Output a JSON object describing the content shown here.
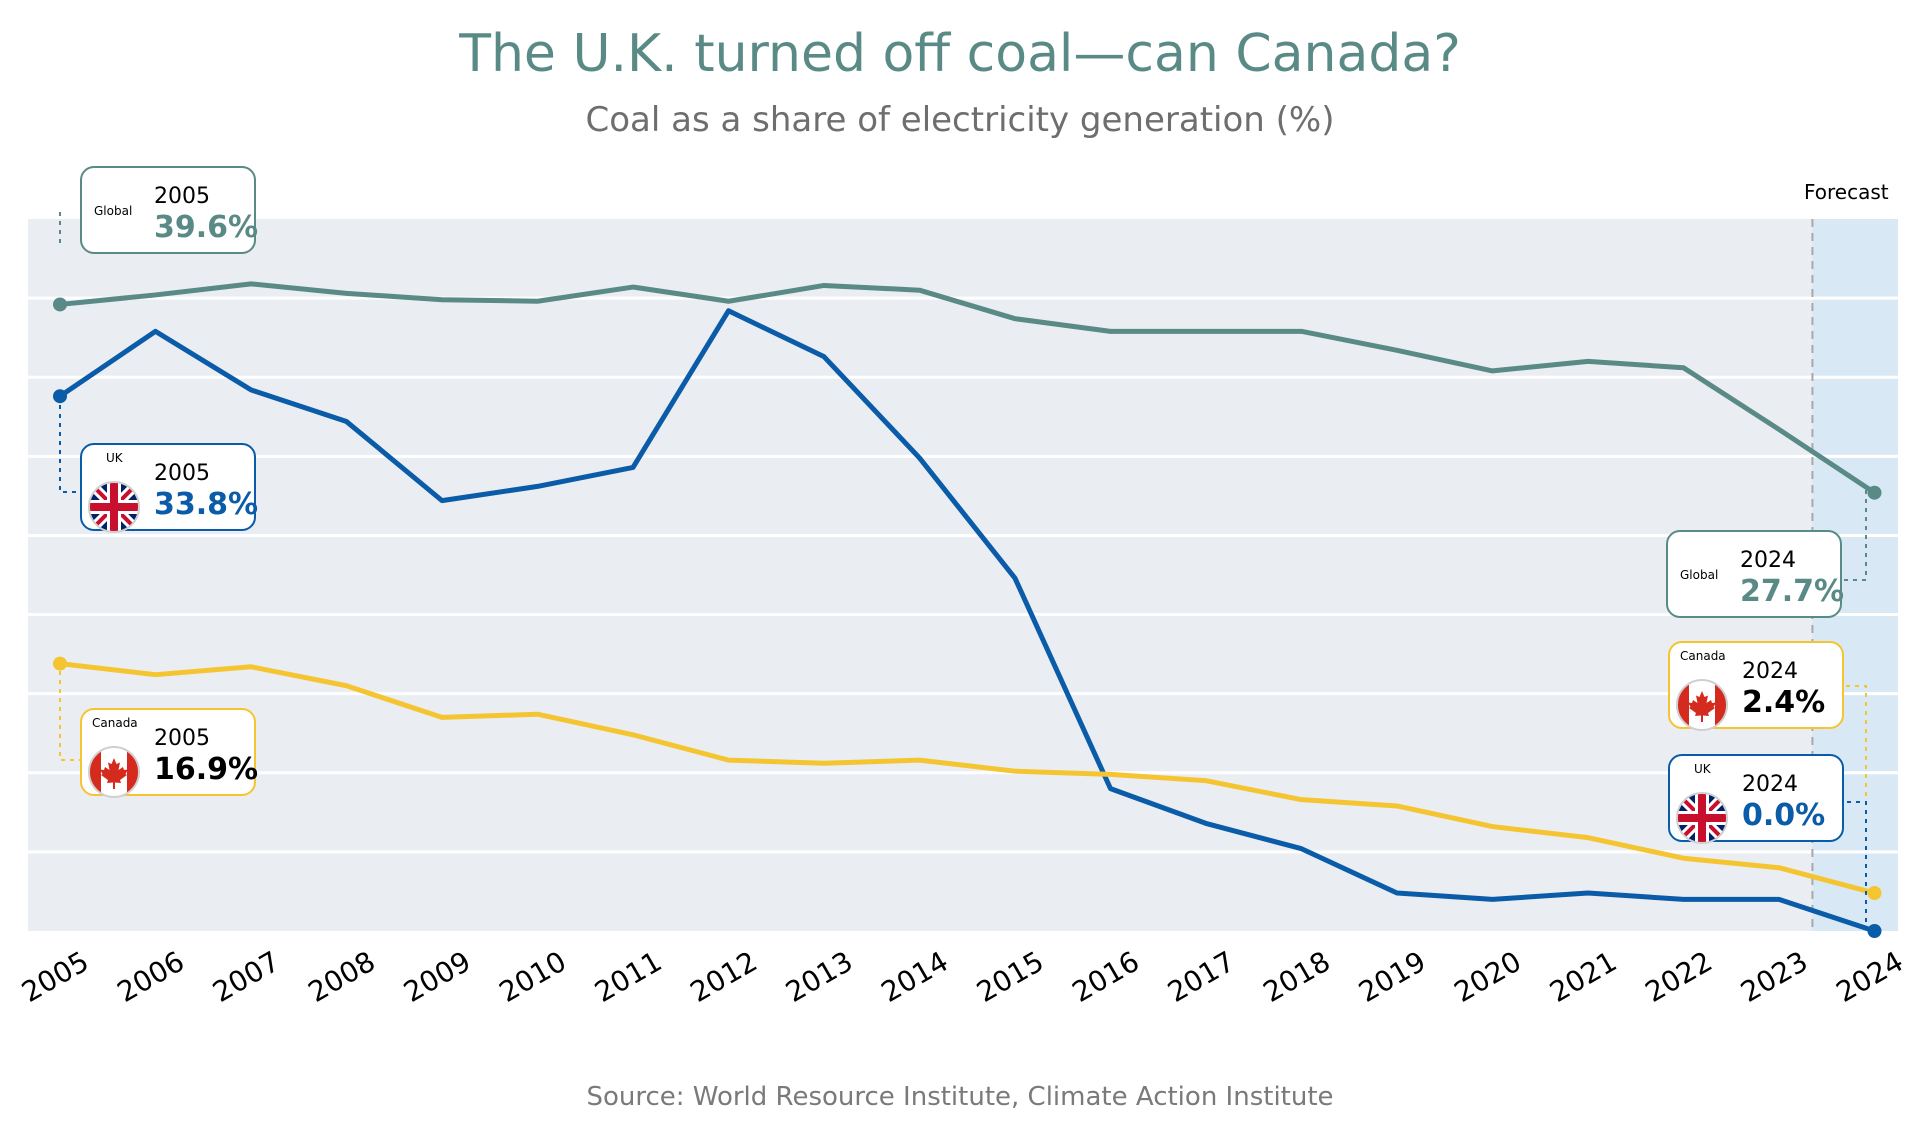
{
  "title": "The U.K. turned off coal—can Canada?",
  "subtitle": "Coal as a share of electricity generation (%)",
  "source": "Source: World Resource Institute, Climate Action Institute",
  "forecast_label": "Forecast",
  "colors": {
    "Global": "#5a8a85",
    "UK": "#0a5ba8",
    "Canada": "#f5c531",
    "plot_bg": "#eaedf2",
    "forecast_bg": "#d8e9f5"
  },
  "callouts": {
    "global_start": {
      "series": "Global",
      "year": "2005",
      "value": "39.6%"
    },
    "uk_start": {
      "series": "UK",
      "year": "2005",
      "value": "33.8%"
    },
    "canada_start": {
      "series": "Canada",
      "year": "2005",
      "value": "16.9%"
    },
    "global_end": {
      "series": "Global",
      "year": "2024",
      "value": "27.7%"
    },
    "canada_end": {
      "series": "Canada",
      "year": "2024",
      "value": "2.4%"
    },
    "uk_end": {
      "series": "UK",
      "year": "2024",
      "value": "0.0%"
    }
  },
  "chart_data": {
    "type": "line",
    "title": "The U.K. turned off coal—can Canada?",
    "subtitle": "Coal as a share of electricity generation (%)",
    "xlabel": "",
    "ylabel": "",
    "categories": [
      "2005",
      "2006",
      "2007",
      "2008",
      "2009",
      "2010",
      "2011",
      "2012",
      "2013",
      "2014",
      "2015",
      "2016",
      "2017",
      "2018",
      "2019",
      "2020",
      "2021",
      "2022",
      "2023",
      "2024"
    ],
    "ylim": [
      0,
      45
    ],
    "grid": true,
    "forecast_from": "2023",
    "series": [
      {
        "name": "Global",
        "values": [
          39.6,
          40.2,
          40.9,
          40.3,
          39.9,
          39.8,
          40.7,
          39.8,
          40.8,
          40.5,
          38.7,
          37.9,
          37.9,
          37.9,
          36.7,
          35.4,
          36.0,
          35.6,
          31.7,
          27.7
        ]
      },
      {
        "name": "UK",
        "values": [
          33.8,
          37.9,
          34.2,
          32.2,
          27.2,
          28.1,
          29.3,
          39.2,
          36.3,
          29.9,
          22.3,
          9.0,
          6.8,
          5.2,
          2.4,
          2.0,
          2.4,
          2.0,
          2.0,
          0.0
        ]
      },
      {
        "name": "Canada",
        "values": [
          16.9,
          16.2,
          16.7,
          15.5,
          13.5,
          13.7,
          12.4,
          10.8,
          10.6,
          10.8,
          10.1,
          9.9,
          9.5,
          8.3,
          7.9,
          6.6,
          5.9,
          4.6,
          4.0,
          2.4
        ]
      }
    ]
  }
}
